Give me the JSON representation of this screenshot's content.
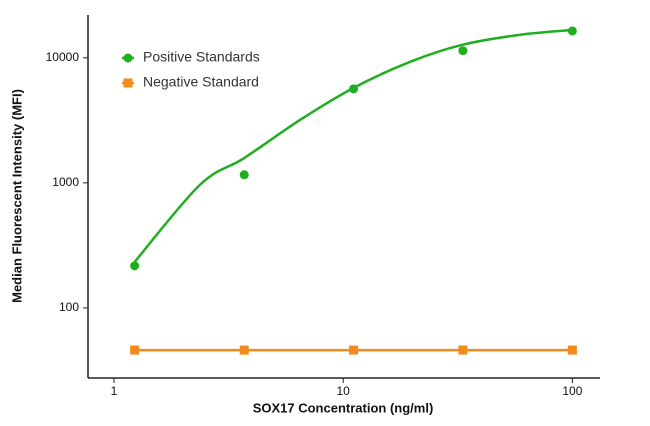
{
  "chart_data": {
    "type": "scatter",
    "xlabel": "SOX17 Concentration (ng/ml)",
    "ylabel": "Median Fluorescent Intensity (MFI)",
    "xscale": "log",
    "yscale": "log",
    "xlim": [
      0.77,
      132
    ],
    "ylim": [
      27.5,
      22000
    ],
    "xticks": [
      1,
      10,
      100
    ],
    "yticks": [
      100,
      1000,
      10000
    ],
    "legend": "upper left",
    "series": [
      {
        "name": "Positive Standards",
        "color": "#1fae1f",
        "marker": "circle",
        "line": "fit",
        "x": [
          1.23,
          3.7,
          11.1,
          33.3,
          100
        ],
        "values": [
          217,
          1160,
          5650,
          11400,
          16400
        ],
        "fit_x": [
          1.23,
          2.37,
          3.7,
          6.49,
          11.1,
          19.6,
          33.1,
          59.3,
          100
        ],
        "fit_values": [
          233,
          964,
          1580,
          3190,
          5750,
          9290,
          12700,
          15300,
          16700
        ]
      },
      {
        "name": "Negative Standard",
        "color": "#f28a1c",
        "marker": "square",
        "line": "straight",
        "x": [
          1.23,
          3.7,
          11.1,
          33.3,
          100
        ],
        "values": [
          46,
          46,
          46,
          46,
          46
        ]
      }
    ]
  }
}
